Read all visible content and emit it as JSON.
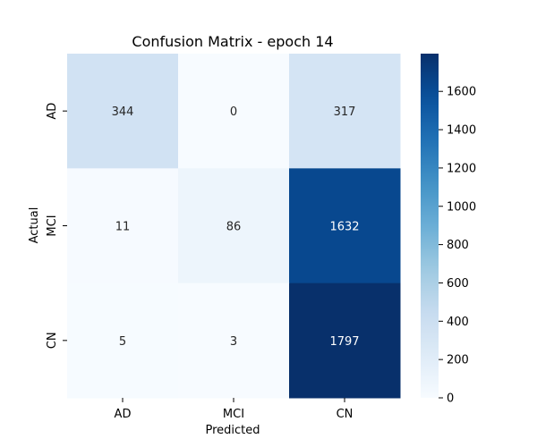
{
  "chart_data": {
    "type": "heatmap",
    "title": "Confusion Matrix - epoch 14",
    "xlabel": "Predicted",
    "ylabel": "Actual",
    "x_categories": [
      "AD",
      "MCI",
      "CN"
    ],
    "y_categories": [
      "AD",
      "MCI",
      "CN"
    ],
    "values": [
      [
        344,
        0,
        317
      ],
      [
        11,
        86,
        1632
      ],
      [
        5,
        3,
        1797
      ]
    ],
    "colormap": "Blues",
    "colorbar": {
      "range": [
        0,
        1797
      ],
      "ticks": [
        0,
        200,
        400,
        600,
        800,
        1000,
        1200,
        1400,
        1600
      ]
    },
    "colors": {
      "low": "#f7fbff",
      "high": "#08306b",
      "annotation_dark_text": "#262626",
      "annotation_light_text": "#ffffff"
    }
  }
}
